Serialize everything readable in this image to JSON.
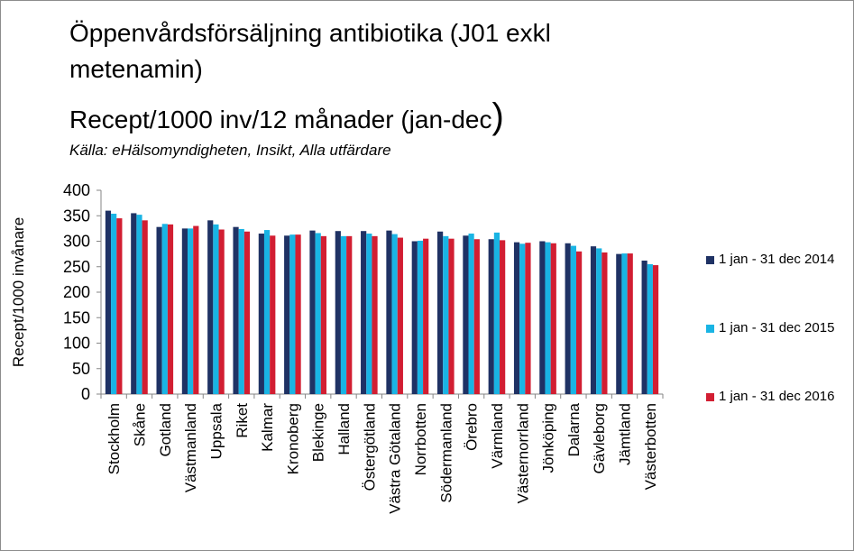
{
  "title": "Öppenvårdsförsäljning antibiotika (J01 exkl metenamin)",
  "subtitle": "Recept/1000 inv/12 månader (jan-dec",
  "subtitle_paren": ")",
  "source": "Källa: eHälsomyndigheten, Insikt, Alla utfärdare",
  "colors": {
    "s2014": "#1f3264",
    "s2015": "#19b4e4",
    "s2016": "#d21e32"
  },
  "chart_data": {
    "type": "bar",
    "ylabel": "Recept/1000 invånare",
    "xlabel": "",
    "ylim": [
      0,
      400
    ],
    "yticks": [
      0,
      50,
      100,
      150,
      200,
      250,
      300,
      350,
      400
    ],
    "grid": false,
    "legend_position": "right",
    "categories": [
      "Stockholm",
      "Skåne",
      "Gotland",
      "Västmanland",
      "Uppsala",
      "Riket",
      "Kalmar",
      "Kronoberg",
      "Blekinge",
      "Halland",
      "Östergötland",
      "Västra Götaland",
      "Norrbotten",
      "Södermanland",
      "Örebro",
      "Värmland",
      "Västernorrland",
      "Jönköping",
      "Dalarna",
      "Gävleborg",
      "Jämtland",
      "Västerbotten"
    ],
    "series": [
      {
        "name": "1 jan - 31 dec 2014",
        "values": [
          360,
          355,
          328,
          325,
          341,
          328,
          315,
          311,
          321,
          320,
          320,
          321,
          300,
          319,
          311,
          304,
          298,
          300,
          296,
          290,
          275,
          262
        ]
      },
      {
        "name": "1 jan - 31 dec 2015",
        "values": [
          354,
          352,
          334,
          325,
          333,
          324,
          322,
          313,
          316,
          310,
          315,
          314,
          301,
          310,
          315,
          317,
          295,
          298,
          291,
          286,
          276,
          255
        ]
      },
      {
        "name": "1 jan - 31 dec 2016",
        "values": [
          345,
          341,
          333,
          330,
          323,
          319,
          311,
          313,
          310,
          310,
          310,
          307,
          305,
          305,
          304,
          302,
          297,
          296,
          280,
          278,
          276,
          253
        ]
      }
    ]
  }
}
